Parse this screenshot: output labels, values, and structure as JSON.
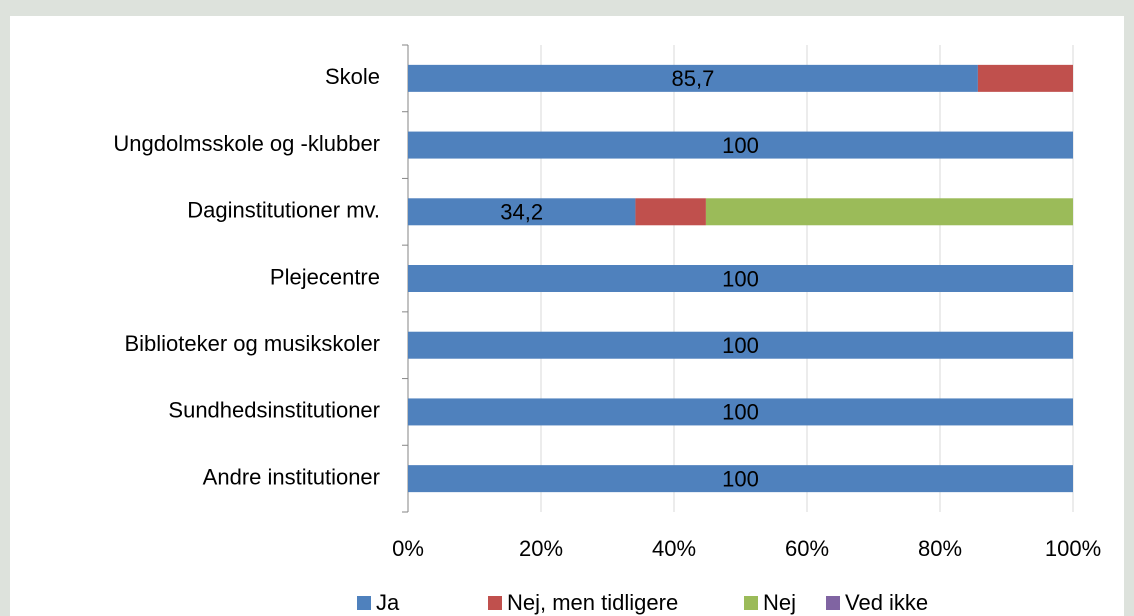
{
  "chart_data": {
    "type": "stacked_bar_horizontal",
    "categories": [
      "Skole",
      "Ungdolmsskole og -klubber",
      "Daginstitutioner mv.",
      "Plejecentre",
      "Biblioteker og musikskoler",
      "Sundhedsinstitutioner",
      "Andre institutioner"
    ],
    "series": [
      {
        "name": "Ja",
        "color": "#4f81bd",
        "values": [
          85.7,
          100,
          34.2,
          100,
          100,
          100,
          100
        ],
        "value_labels": [
          "85,7",
          "100",
          "34,2",
          "100",
          "100",
          "100",
          "100"
        ]
      },
      {
        "name": "Nej, men tidligere",
        "color": "#c0504d",
        "values": [
          14.3,
          0,
          10.6,
          0,
          0,
          0,
          0
        ]
      },
      {
        "name": "Nej",
        "color": "#9bbb59",
        "values": [
          0,
          0,
          55.2,
          0,
          0,
          0,
          0
        ]
      },
      {
        "name": "Ved ikke",
        "color": "#8064a2",
        "values": [
          0,
          0,
          0,
          0,
          0,
          0,
          0
        ]
      }
    ],
    "xlim": [
      0,
      100
    ],
    "xticks": [
      {
        "value": 0,
        "label": "0%"
      },
      {
        "value": 20,
        "label": "20%"
      },
      {
        "value": 40,
        "label": "40%"
      },
      {
        "value": 60,
        "label": "60%"
      },
      {
        "value": 80,
        "label": "80%"
      },
      {
        "value": 100,
        "label": "100%"
      }
    ],
    "grid": true,
    "legend": "bottom"
  }
}
